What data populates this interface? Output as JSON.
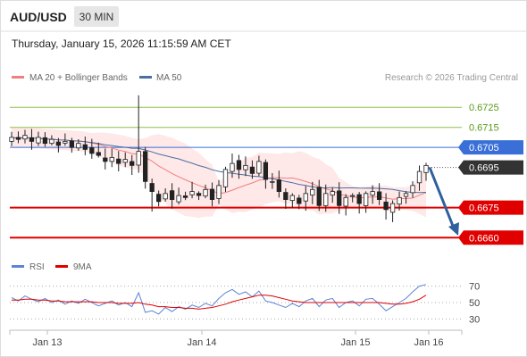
{
  "header": {
    "symbol": "AUD/USD",
    "timeframe": "30 MIN",
    "datetime": "Thursday, January 15, 2026 11:15:59 AM CET"
  },
  "legend": {
    "ma20_bb": "MA 20 + Bollinger Bands",
    "ma50": "MA 50",
    "credit": "Research © 2026 Trading Central",
    "rsi": "RSI",
    "ma9": "9MA"
  },
  "colors": {
    "candle": "#222222",
    "bands": "#fde0e0",
    "ma20": "#f08080",
    "ma50": "#4a6fa5",
    "resistance": "#8fbf4a",
    "pivot": "#3a6fd8",
    "support": "#e00000",
    "current": "#333333",
    "arrow": "#2f5f9f",
    "rsi": "#5b84d6",
    "rsi_ma": "#e00000"
  },
  "chart_data": [
    {
      "type": "candlestick",
      "ylim": [
        0.6653,
        0.6734
      ],
      "x_labels": [
        "Jan 13",
        "Jan 14",
        "Jan 15",
        "Jan 16"
      ],
      "levels": [
        {
          "value": 0.6725,
          "label": "0.6725",
          "kind": "resistance"
        },
        {
          "value": 0.6715,
          "label": "0.6715",
          "kind": "resistance"
        },
        {
          "value": 0.6705,
          "label": "0.6705",
          "kind": "pivot"
        },
        {
          "value": 0.6695,
          "label": "0.6695",
          "kind": "current"
        },
        {
          "value": 0.6675,
          "label": "0.6675",
          "kind": "support"
        },
        {
          "value": 0.666,
          "label": "0.6660",
          "kind": "support"
        }
      ],
      "closes": [
        0.671,
        0.6709,
        0.6711,
        0.6708,
        0.671,
        0.6707,
        0.6709,
        0.6706,
        0.6708,
        0.6705,
        0.6707,
        0.6704,
        0.6702,
        0.6701,
        0.6698,
        0.67,
        0.6697,
        0.6699,
        0.6696,
        0.6703,
        0.6688,
        0.6683,
        0.6678,
        0.6682,
        0.6679,
        0.6681,
        0.668,
        0.6683,
        0.6681,
        0.6684,
        0.6679,
        0.6686,
        0.6694,
        0.6697,
        0.6694,
        0.6696,
        0.6692,
        0.6698,
        0.6689,
        0.6688,
        0.6683,
        0.6679,
        0.6681,
        0.6677,
        0.6682,
        0.6684,
        0.6676,
        0.6682,
        0.6683,
        0.6676,
        0.668,
        0.6681,
        0.6677,
        0.6682,
        0.6683,
        0.6679,
        0.6674,
        0.6677,
        0.668,
        0.6682,
        0.6686,
        0.6693,
        0.6696
      ]
    },
    {
      "type": "line",
      "name": "RSI",
      "ylim": [
        25,
        75
      ],
      "y_ticks": [
        30,
        50,
        70
      ],
      "x_labels": [
        "Jan 13",
        "Jan 14",
        "Jan 15",
        "Jan 16"
      ],
      "series": [
        {
          "name": "RSI",
          "values": [
            56,
            52,
            58,
            54,
            51,
            55,
            50,
            53,
            48,
            52,
            49,
            54,
            50,
            46,
            49,
            52,
            47,
            50,
            45,
            62,
            38,
            40,
            36,
            44,
            39,
            45,
            42,
            47,
            44,
            49,
            46,
            55,
            62,
            66,
            60,
            63,
            57,
            64,
            52,
            50,
            47,
            44,
            49,
            45,
            52,
            55,
            45,
            53,
            55,
            44,
            50,
            52,
            46,
            54,
            55,
            48,
            40,
            45,
            50,
            55,
            63,
            70,
            72
          ]
        },
        {
          "name": "9MA",
          "values": [
            53,
            53,
            54,
            54,
            53,
            53,
            52,
            52,
            51,
            51,
            51,
            51,
            51,
            50,
            50,
            50,
            49,
            49,
            49,
            50,
            48,
            47,
            45,
            45,
            44,
            44,
            43,
            43,
            42,
            43,
            44,
            46,
            48,
            51,
            53,
            55,
            57,
            59,
            59,
            58,
            56,
            54,
            52,
            51,
            50,
            50,
            50,
            50,
            50,
            50,
            50,
            50,
            50,
            50,
            50,
            50,
            49,
            48,
            48,
            49,
            51,
            54,
            59
          ]
        }
      ]
    }
  ]
}
